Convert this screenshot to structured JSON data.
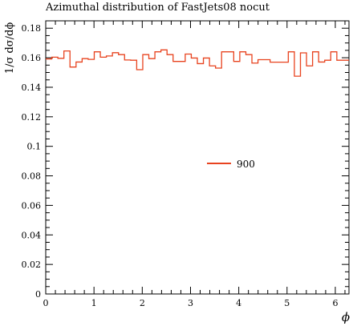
{
  "chart_data": {
    "type": "line",
    "title": "Azimuthal distribution of FastJets08 nocut",
    "xlabel": "ϕ",
    "ylabel": "1/σ dσ/dϕ",
    "xlim": [
      0,
      6.2832
    ],
    "ylim": [
      0,
      0.185
    ],
    "x_ticks": [
      0,
      1,
      2,
      3,
      4,
      5,
      6
    ],
    "x_tick_labels": [
      "0",
      "1",
      "2",
      "3",
      "4",
      "5",
      "6"
    ],
    "y_ticks": [
      0,
      0.02,
      0.04,
      0.06,
      0.08,
      0.1,
      0.12,
      0.14,
      0.16,
      0.18
    ],
    "y_tick_labels": [
      "0",
      "0.02",
      "0.04",
      "0.06",
      "0.08",
      "0.1",
      "0.12",
      "0.14",
      "0.16",
      "0.18"
    ],
    "legend_placement": "center-right",
    "grid": false,
    "series": [
      {
        "name": "900",
        "color": "#e8431f",
        "style": "histogram-step",
        "bin_width": 0.12566,
        "values": [
          0.1592,
          0.1604,
          0.1596,
          0.1646,
          0.1537,
          0.1571,
          0.1594,
          0.1589,
          0.164,
          0.1604,
          0.1612,
          0.1634,
          0.1621,
          0.1585,
          0.1583,
          0.1519,
          0.1621,
          0.1594,
          0.164,
          0.1653,
          0.1621,
          0.1575,
          0.1575,
          0.1625,
          0.1598,
          0.156,
          0.1598,
          0.1545,
          0.153,
          0.164,
          0.164,
          0.1575,
          0.164,
          0.1621,
          0.1564,
          0.1587,
          0.1587,
          0.157,
          0.157,
          0.157,
          0.164,
          0.1475,
          0.1633,
          0.1545,
          0.164,
          0.1571,
          0.1583,
          0.164,
          0.1583,
          0.1583
        ]
      }
    ]
  }
}
